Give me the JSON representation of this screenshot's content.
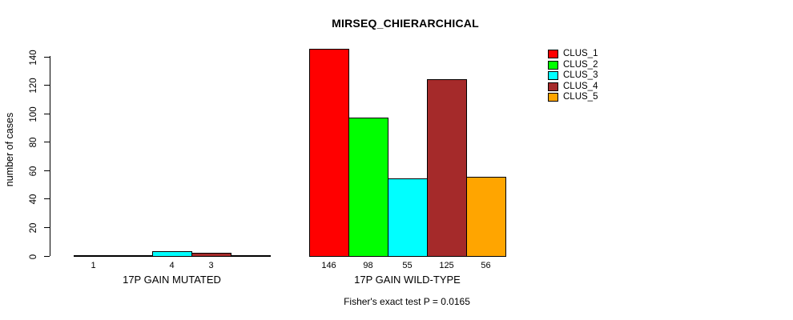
{
  "chart_data": {
    "type": "bar",
    "title": "MIRSEQ_CHIERARCHICAL",
    "ylabel": "number of cases",
    "xlabel": "",
    "ylim": [
      0,
      140
    ],
    "yticks": [
      0,
      20,
      40,
      60,
      80,
      100,
      120,
      140
    ],
    "grid": false,
    "legend_position": "top-right",
    "legend": [
      {
        "label": "CLUS_1",
        "color": "#ff0000"
      },
      {
        "label": "CLUS_2",
        "color": "#00ff00"
      },
      {
        "label": "CLUS_3",
        "color": "#00ffff"
      },
      {
        "label": "CLUS_4",
        "color": "#a52a2a"
      },
      {
        "label": "CLUS_5",
        "color": "#ffa500"
      }
    ],
    "groups": [
      {
        "label": "17P GAIN MUTATED",
        "values": [
          1,
          0,
          4,
          3,
          0
        ],
        "bar_labels": [
          "1",
          "",
          "4",
          "3",
          ""
        ]
      },
      {
        "label": "17P GAIN WILD-TYPE",
        "values": [
          146,
          98,
          55,
          125,
          56
        ],
        "bar_labels": [
          "146",
          "98",
          "55",
          "125",
          "56"
        ]
      }
    ],
    "annotation": "Fisher's exact test P = 0.0165"
  }
}
